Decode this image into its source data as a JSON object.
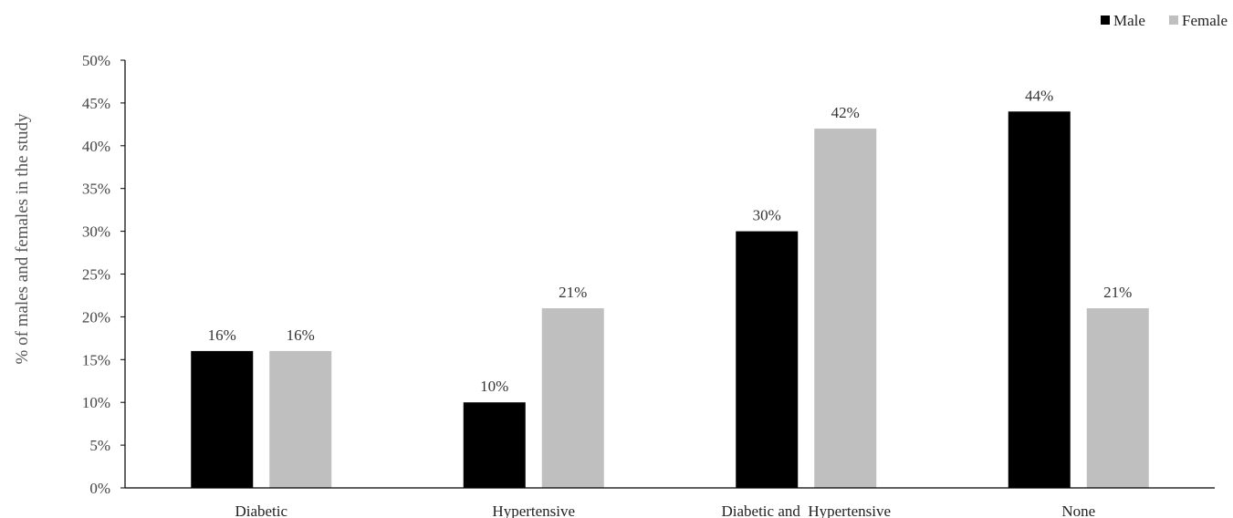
{
  "chart_data": {
    "type": "bar",
    "categories": [
      "Diabetic",
      "Hypertensive",
      "Diabetic and  Hypertensive",
      "None"
    ],
    "series": [
      {
        "name": "Male",
        "values": [
          16,
          10,
          30,
          44
        ],
        "color": "#000000"
      },
      {
        "name": "Female",
        "values": [
          16,
          21,
          42,
          21
        ],
        "color": "#bfbfbf"
      }
    ],
    "value_labels": [
      [
        "16%",
        "10%",
        "30%",
        "44%"
      ],
      [
        "16%",
        "21%",
        "42%",
        "21%"
      ]
    ],
    "ylabel": "% of males and females in the study",
    "xlabel": "",
    "ylim": [
      0,
      50
    ],
    "y_ticks": [
      0,
      5,
      10,
      15,
      20,
      25,
      30,
      35,
      40,
      45,
      50
    ],
    "y_tick_labels": [
      "0%",
      "5%",
      "10%",
      "15%",
      "20%",
      "25%",
      "30%",
      "35%",
      "40%",
      "45%",
      "50%"
    ],
    "grid": false,
    "legend": "top-right"
  }
}
